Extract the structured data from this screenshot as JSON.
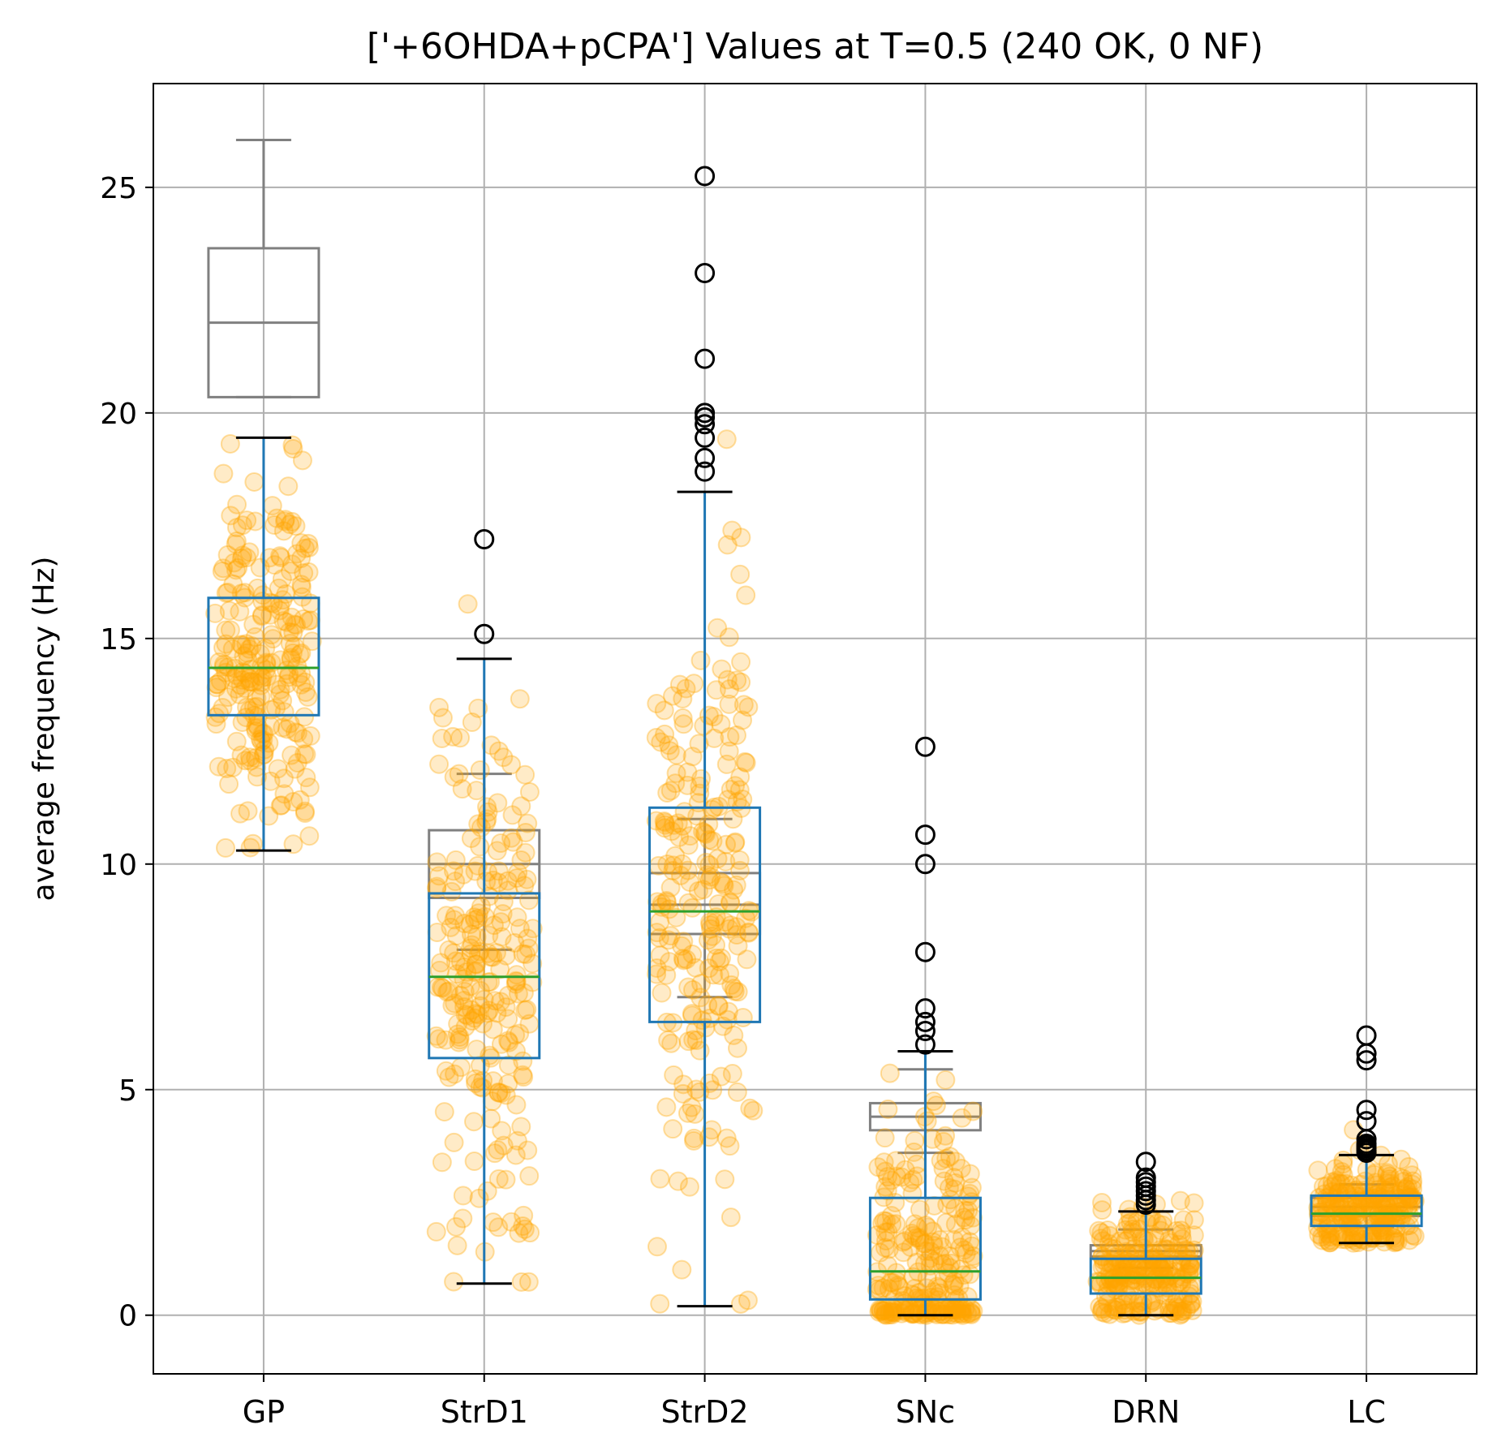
{
  "chart_data": {
    "type": "box",
    "title": "['+6OHDA+pCPA'] Values at T=0.5 (240 OK, 0 NF)",
    "xlabel": "",
    "ylabel": "average frequency (Hz)",
    "ylim": [
      -1.3,
      27.3
    ],
    "yticks": [
      0,
      5,
      10,
      15,
      20,
      25
    ],
    "categories": [
      "GP",
      "StrD1",
      "StrD2",
      "SNc",
      "DRN",
      "LC"
    ],
    "grid": true,
    "series": [
      {
        "color": "#808080",
        "boxes": [
          {
            "q1": 20.35,
            "median": 22.0,
            "q3": 23.65,
            "whislo": 20.35,
            "whishi": 26.05,
            "fliers": []
          },
          {
            "q1": 9.25,
            "median": 10.0,
            "q3": 10.75,
            "whislo": 8.1,
            "whishi": 12.0,
            "fliers": []
          },
          {
            "q1": 8.45,
            "median": 9.1,
            "q3": 9.8,
            "whislo": 7.05,
            "whishi": 11.0,
            "fliers": []
          },
          {
            "q1": 4.1,
            "median": 4.4,
            "q3": 4.7,
            "whislo": 3.6,
            "whishi": 5.45,
            "fliers": []
          },
          {
            "q1": 1.3,
            "median": 1.42,
            "q3": 1.55,
            "whislo": 1.05,
            "whishi": 1.9,
            "fliers": []
          },
          {
            "q1": 2.2,
            "median": 2.4,
            "q3": 2.6,
            "whislo": 1.95,
            "whishi": 2.9,
            "fliers": []
          }
        ]
      },
      {
        "color": "#1f77b4",
        "median_color": "#2ca02c",
        "whisker_color": "#000000",
        "boxes": [
          {
            "q1": 13.3,
            "median": 14.35,
            "q3": 15.9,
            "whislo": 10.3,
            "whishi": 19.45,
            "fliers": []
          },
          {
            "q1": 5.7,
            "median": 7.5,
            "q3": 9.35,
            "whislo": 0.7,
            "whishi": 14.55,
            "fliers": [
              15.1,
              17.2
            ]
          },
          {
            "q1": 6.5,
            "median": 8.95,
            "q3": 11.25,
            "whislo": 0.2,
            "whishi": 18.25,
            "fliers": [
              18.7,
              19.0,
              19.45,
              19.75,
              19.9,
              20.0,
              21.2,
              23.1,
              25.25
            ]
          },
          {
            "q1": 0.35,
            "median": 0.97,
            "q3": 2.6,
            "whislo": 0.0,
            "whishi": 5.85,
            "fliers": [
              6.0,
              6.3,
              6.5,
              6.8,
              8.05,
              10.0,
              10.65,
              12.6
            ]
          },
          {
            "q1": 0.48,
            "median": 0.83,
            "q3": 1.25,
            "whislo": 0.0,
            "whishi": 2.3,
            "fliers": [
              2.45,
              2.55,
              2.65,
              2.75,
              2.85,
              2.95,
              3.05,
              3.4
            ]
          },
          {
            "q1": 1.98,
            "median": 2.25,
            "q3": 2.65,
            "whislo": 1.6,
            "whishi": 3.55,
            "fliers": [
              3.6,
              3.65,
              3.7,
              3.75,
              3.8,
              3.9,
              4.3,
              4.55,
              5.65,
              5.8,
              6.2
            ]
          }
        ]
      }
    ],
    "scatter": {
      "color": "#ffa500",
      "alpha": 0.25,
      "points_per_category": [
        240,
        240,
        240,
        240,
        240,
        240
      ],
      "ranges": [
        {
          "min": 10.3,
          "max": 19.5,
          "center": 14.6,
          "spread": 2.0
        },
        {
          "min": 0.7,
          "max": 17.2,
          "center": 7.4,
          "spread": 2.6
        },
        {
          "min": 0.2,
          "max": 25.25,
          "center": 9.0,
          "spread": 3.3
        },
        {
          "min": 0.0,
          "max": 12.6,
          "center": 1.0,
          "spread": 1.8
        },
        {
          "min": 0.0,
          "max": 3.4,
          "center": 0.9,
          "spread": 0.7
        },
        {
          "min": 1.6,
          "max": 6.2,
          "center": 2.35,
          "spread": 0.5
        }
      ]
    }
  }
}
